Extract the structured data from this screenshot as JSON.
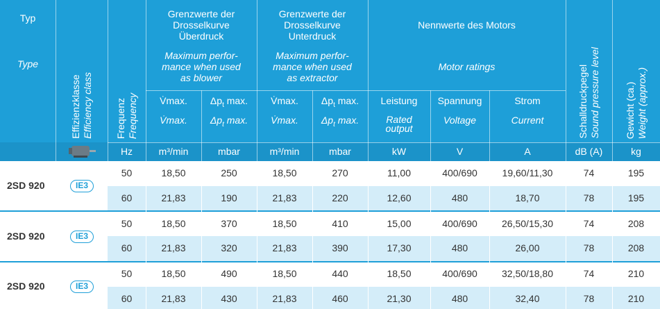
{
  "header": {
    "typ": [
      "Typ",
      "Type"
    ],
    "efficiency": [
      "Effizienzklasse",
      "Efficiency class"
    ],
    "frequency": [
      "Frequenz",
      "Frequency"
    ],
    "blower": {
      "title": [
        "Grenzwerte der",
        "Drosselkurve",
        "Überdruck"
      ],
      "en": [
        "Maximum perfor-",
        "mance when used",
        "as blower"
      ]
    },
    "extractor": {
      "title": [
        "Grenzwerte der",
        "Drosselkurve",
        "Unterdruck"
      ],
      "en": [
        "Maximum perfor-",
        "mance when used",
        "as extractor"
      ]
    },
    "motor": {
      "title": "Nennwerte des Motors",
      "en": "Motor ratings"
    },
    "sound": [
      "Schalldruckpegel",
      "Sound pressure level"
    ],
    "weight": [
      "Gewicht (ca.)",
      "Weight (approx.)"
    ],
    "columns": [
      {
        "de": [
          "V̇max."
        ],
        "en": [
          "V̇max."
        ]
      },
      {
        "de": [
          "Δp",
          "t",
          " max."
        ],
        "en": [
          "Δp",
          "t",
          " max."
        ]
      },
      {
        "de": [
          "V̇max."
        ],
        "en": [
          "V̇max."
        ]
      },
      {
        "de": [
          "Δp",
          "t",
          " max."
        ],
        "en": [
          "Δp",
          "t",
          " max."
        ]
      },
      {
        "de": [
          "Leistung"
        ],
        "en": [
          "Rated",
          "output"
        ]
      },
      {
        "de": [
          "Spannung"
        ],
        "en": [
          "Voltage"
        ]
      },
      {
        "de": [
          "Strom"
        ],
        "en": [
          "Current"
        ]
      }
    ],
    "units": [
      "Hz",
      "m³/min",
      "mbar",
      "m³/min",
      "mbar",
      "kW",
      "V",
      "A",
      "dB (A)",
      "kg"
    ]
  },
  "groups": [
    {
      "type": "2SD 920",
      "class": "IE3",
      "rows": [
        [
          "50",
          "18,50",
          "250",
          "18,50",
          "270",
          "11,00",
          "400/690",
          "19,60/11,30",
          "74",
          "195"
        ],
        [
          "60",
          "21,83",
          "190",
          "21,83",
          "220",
          "12,60",
          "480",
          "18,70",
          "78",
          "195"
        ]
      ]
    },
    {
      "type": "2SD 920",
      "class": "IE3",
      "rows": [
        [
          "50",
          "18,50",
          "370",
          "18,50",
          "410",
          "15,00",
          "400/690",
          "26,50/15,30",
          "74",
          "208"
        ],
        [
          "60",
          "21,83",
          "320",
          "21,83",
          "390",
          "17,30",
          "480",
          "26,00",
          "78",
          "208"
        ]
      ]
    },
    {
      "type": "2SD 920",
      "class": "IE3",
      "rows": [
        [
          "50",
          "18,50",
          "490",
          "18,50",
          "440",
          "18,50",
          "400/690",
          "32,50/18,80",
          "74",
          "210"
        ],
        [
          "60",
          "21,83",
          "430",
          "21,83",
          "460",
          "21,30",
          "480",
          "32,40",
          "78",
          "210"
        ]
      ]
    }
  ]
}
